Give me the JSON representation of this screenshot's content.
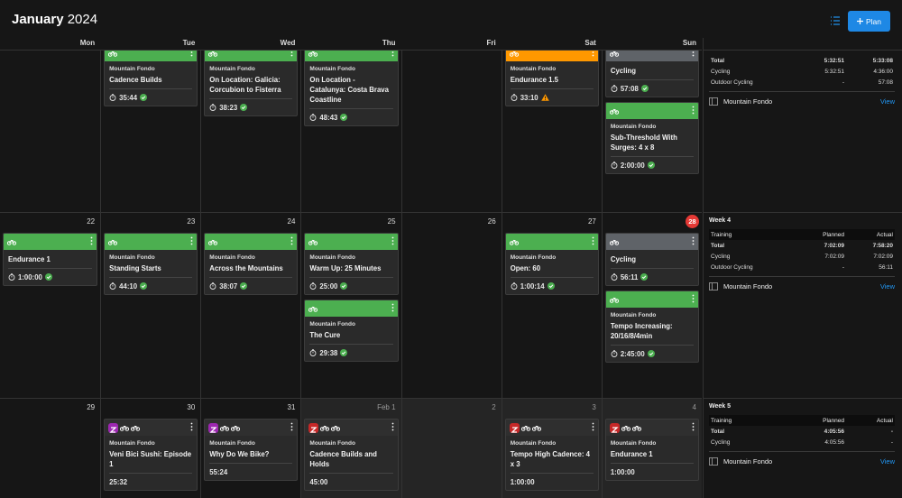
{
  "header": {
    "month": "January",
    "year": "2024",
    "plan_button": "Plan"
  },
  "weekdays": [
    "Mon",
    "Tue",
    "Wed",
    "Thu",
    "Fri",
    "Sat",
    "Sun"
  ],
  "weeks": [
    {
      "days": [
        [],
        [
          {
            "header": "green",
            "type": "Mountain Fondo",
            "title": "Cadence Builds",
            "duration": "35:44",
            "status": "done"
          }
        ],
        [
          {
            "header": "green",
            "type": "Mountain Fondo",
            "title": "On Location: Galicia: Corcubion to Fisterra",
            "duration": "38:23",
            "status": "done"
          }
        ],
        [
          {
            "header": "green",
            "type": "Mountain Fondo",
            "title": "On Location - Catalunya: Costa Brava Coastline",
            "duration": "48:43",
            "status": "done"
          }
        ],
        [],
        [
          {
            "header": "orange",
            "type": "Mountain Fondo",
            "title": "Endurance 1.5",
            "duration": "33:10",
            "status": "warning"
          }
        ],
        [
          {
            "header": "gray",
            "title": "Cycling",
            "duration": "57:08",
            "status": "done"
          },
          {
            "header": "green",
            "type": "Mountain Fondo",
            "title": "Sub-Threshold With Surges: 4 x 8",
            "duration": "2:00:00",
            "status": "done"
          }
        ]
      ]
    },
    {
      "dates": [
        "22",
        "23",
        "24",
        "25",
        "26",
        "27",
        {
          "label": "28",
          "today": true
        }
      ],
      "days": [
        [
          {
            "header": "green",
            "title": "Endurance 1",
            "duration": "1:00:00",
            "status": "done"
          }
        ],
        [
          {
            "header": "green",
            "type": "Mountain Fondo",
            "title": "Standing Starts",
            "duration": "44:10",
            "status": "done"
          }
        ],
        [
          {
            "header": "green",
            "type": "Mountain Fondo",
            "title": "Across the Mountains",
            "duration": "38:07",
            "status": "done"
          }
        ],
        [
          {
            "header": "green",
            "type": "Mountain Fondo",
            "title": "Warm Up: 25 Minutes",
            "duration": "25:00",
            "status": "done"
          },
          {
            "header": "green",
            "type": "Mountain Fondo",
            "title": "The Cure",
            "duration": "29:38",
            "status": "done"
          }
        ],
        [],
        [
          {
            "header": "green",
            "type": "Mountain Fondo",
            "title": "Open: 60",
            "duration": "1:00:14",
            "status": "done"
          }
        ],
        [
          {
            "header": "gray",
            "title": "Cycling",
            "duration": "56:11",
            "status": "done"
          },
          {
            "header": "green",
            "type": "Mountain Fondo",
            "title": "Tempo Increasing: 20/16/8/4min",
            "duration": "2:45:00",
            "status": "done"
          }
        ]
      ]
    },
    {
      "dates": [
        "29",
        "30",
        "31",
        {
          "label": "Feb 1",
          "other_month": true
        },
        {
          "label": "2",
          "other_month": true
        },
        {
          "label": "3",
          "other_month": true
        },
        {
          "label": "4",
          "other_month": true
        }
      ],
      "days": [
        [],
        [
          {
            "header": "dark",
            "logo": "purple",
            "type": "Mountain Fondo",
            "title": "Veni Bici Sushi: Episode 1",
            "duration": "25:32"
          }
        ],
        [
          {
            "header": "dark",
            "logo": "purple",
            "type": "Mountain Fondo",
            "title": "Why Do We Bike?",
            "duration": "55:24"
          }
        ],
        [
          {
            "header": "dark",
            "logo": "red",
            "type": "Mountain Fondo",
            "title": "Cadence Builds and Holds",
            "duration": "45:00"
          }
        ],
        [],
        [
          {
            "header": "dark",
            "logo": "red",
            "type": "Mountain Fondo",
            "title": "Tempo High Cadence: 4 x 3",
            "duration": "1:00:00"
          }
        ],
        [
          {
            "header": "dark",
            "logo": "red",
            "type": "Mountain Fondo",
            "title": "Endurance 1",
            "duration": "1:00:00"
          }
        ]
      ]
    }
  ],
  "summaries": [
    {
      "rows": [
        [
          "Total",
          "5:32:51",
          "5:33:08"
        ],
        [
          "Cycling",
          "5:32:51",
          "4:36:00"
        ],
        [
          "Outdoor Cycling",
          "-",
          "57:08"
        ]
      ],
      "plan": "Mountain Fondo",
      "link": "View"
    },
    {
      "label": "Week 4",
      "columns": [
        "Training",
        "Planned",
        "Actual"
      ],
      "rows": [
        [
          "Total",
          "7:02:09",
          "7:58:20"
        ],
        [
          "Cycling",
          "7:02:09",
          "7:02:09"
        ],
        [
          "Outdoor Cycling",
          "-",
          "56:11"
        ]
      ],
      "plan": "Mountain Fondo",
      "link": "View"
    },
    {
      "label": "Week 5",
      "columns": [
        "Training",
        "Planned",
        "Actual"
      ],
      "rows": [
        [
          "Total",
          "4:05:56",
          "-"
        ],
        [
          "Cycling",
          "4:05:56",
          "-"
        ]
      ],
      "plan": "Mountain Fondo",
      "link": "View"
    }
  ]
}
